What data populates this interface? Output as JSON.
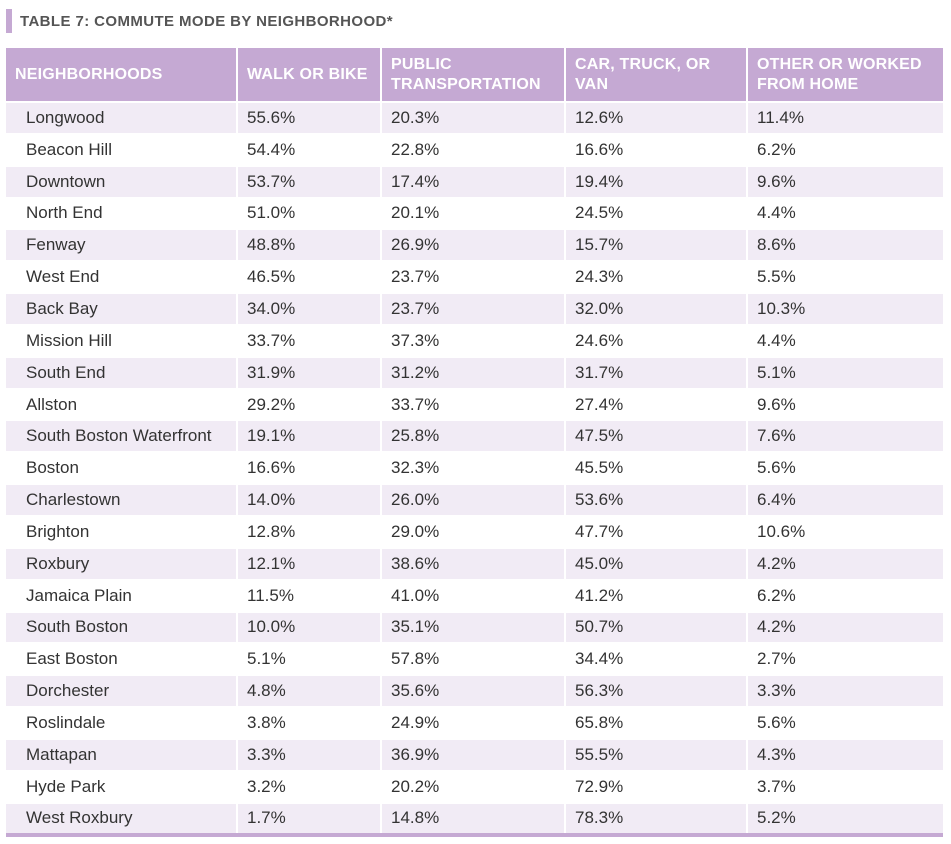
{
  "title": "TABLE 7: COMMUTE MODE BY NEIGHBORHOOD*",
  "colors": {
    "accent": "#c5a9d3",
    "stripe": "#f1ebf5"
  },
  "table": {
    "headers": [
      "NEIGHBORHOODS",
      "WALK OR BIKE",
      "PUBLIC TRANSPORTATION",
      "CAR, TRUCK, OR VAN",
      "OTHER OR WORKED FROM HOME"
    ],
    "rows": [
      [
        "Longwood",
        "55.6%",
        "20.3%",
        "12.6%",
        "11.4%"
      ],
      [
        "Beacon Hill",
        "54.4%",
        "22.8%",
        "16.6%",
        "6.2%"
      ],
      [
        "Downtown",
        "53.7%",
        "17.4%",
        "19.4%",
        "9.6%"
      ],
      [
        "North End",
        "51.0%",
        "20.1%",
        "24.5%",
        "4.4%"
      ],
      [
        "Fenway",
        "48.8%",
        "26.9%",
        "15.7%",
        "8.6%"
      ],
      [
        "West End",
        "46.5%",
        "23.7%",
        "24.3%",
        "5.5%"
      ],
      [
        "Back Bay",
        "34.0%",
        "23.7%",
        "32.0%",
        "10.3%"
      ],
      [
        "Mission Hill",
        "33.7%",
        "37.3%",
        "24.6%",
        "4.4%"
      ],
      [
        "South End",
        "31.9%",
        "31.2%",
        "31.7%",
        "5.1%"
      ],
      [
        "Allston",
        "29.2%",
        "33.7%",
        "27.4%",
        "9.6%"
      ],
      [
        "South Boston Waterfront",
        "19.1%",
        "25.8%",
        "47.5%",
        "7.6%"
      ],
      [
        "Boston",
        "16.6%",
        "32.3%",
        "45.5%",
        "5.6%"
      ],
      [
        "Charlestown",
        "14.0%",
        "26.0%",
        "53.6%",
        "6.4%"
      ],
      [
        "Brighton",
        "12.8%",
        "29.0%",
        "47.7%",
        "10.6%"
      ],
      [
        "Roxbury",
        "12.1%",
        "38.6%",
        "45.0%",
        "4.2%"
      ],
      [
        "Jamaica Plain",
        "11.5%",
        "41.0%",
        "41.2%",
        "6.2%"
      ],
      [
        "South Boston",
        "10.0%",
        "35.1%",
        "50.7%",
        "4.2%"
      ],
      [
        "East Boston",
        "5.1%",
        "57.8%",
        "34.4%",
        "2.7%"
      ],
      [
        "Dorchester",
        "4.8%",
        "35.6%",
        "56.3%",
        "3.3%"
      ],
      [
        "Roslindale",
        "3.8%",
        "24.9%",
        "65.8%",
        "5.6%"
      ],
      [
        "Mattapan",
        "3.3%",
        "36.9%",
        "55.5%",
        "4.3%"
      ],
      [
        "Hyde Park",
        "3.2%",
        "20.2%",
        "72.9%",
        "3.7%"
      ],
      [
        "West Roxbury",
        "1.7%",
        "14.8%",
        "78.3%",
        "5.2%"
      ]
    ]
  }
}
